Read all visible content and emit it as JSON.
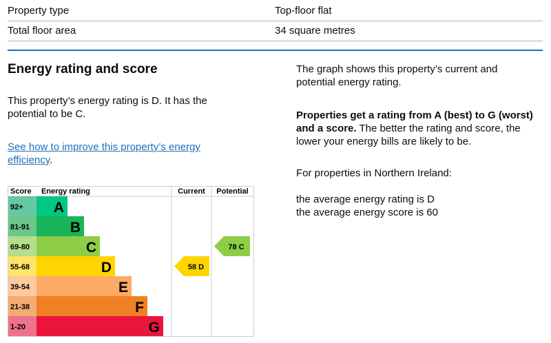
{
  "summary": [
    {
      "label": "Property type",
      "value": "Top-floor flat"
    },
    {
      "label": "Total floor area",
      "value": "34 square metres"
    }
  ],
  "heading": "Energy rating and score",
  "rating_text": "This property’s energy rating is D. It has the potential to be C.",
  "improve_link": "See how to improve this property’s energy efficiency",
  "improve_suffix": ".",
  "right": {
    "graph_text": "The graph shows this property’s current and potential energy rating.",
    "bold_text": "Properties get a rating from A (best) to G (worst) and a score.",
    "rest_text": " The better the rating and score, the lower your energy bills are likely to be.",
    "ni_text": "For properties in Northern Ireland:",
    "avg_rating": "the average energy rating is D",
    "avg_score": "the average energy score is 60"
  },
  "chart_data": {
    "type": "table",
    "headers": [
      "Score",
      "Energy rating",
      "Current",
      "Potential"
    ],
    "bands": [
      {
        "score": "92+",
        "letter": "A",
        "color": "#00c781",
        "tint": "#66c9a3"
      },
      {
        "score": "81-91",
        "letter": "B",
        "color": "#19b459",
        "tint": "#6cc68a"
      },
      {
        "score": "69-80",
        "letter": "C",
        "color": "#8dce46",
        "tint": "#b5de8a"
      },
      {
        "score": "55-68",
        "letter": "D",
        "color": "#ffd500",
        "tint": "#ffe36a"
      },
      {
        "score": "39-54",
        "letter": "E",
        "color": "#fcaa65",
        "tint": "#fdc99d"
      },
      {
        "score": "21-38",
        "letter": "F",
        "color": "#ef8023",
        "tint": "#f5ac72"
      },
      {
        "score": "1-20",
        "letter": "G",
        "color": "#e9153b",
        "tint": "#f0718a"
      }
    ],
    "current": {
      "score": 58,
      "letter": "D",
      "label": "58  D"
    },
    "potential": {
      "score": 78,
      "letter": "C",
      "label": "78  C"
    }
  }
}
